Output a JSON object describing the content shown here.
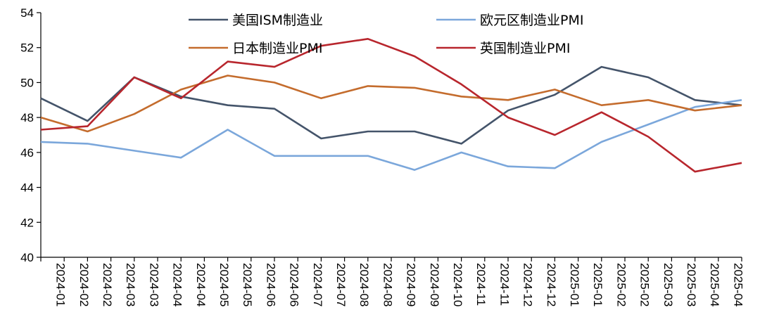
{
  "chart_data": {
    "type": "line",
    "title": "",
    "xlabel": "",
    "ylabel": "",
    "ylim": [
      40,
      54
    ],
    "yticks": [
      40,
      42,
      44,
      46,
      48,
      50,
      52,
      54
    ],
    "grid": false,
    "legend_position": "top",
    "categories": [
      "2024-01",
      "2024-02",
      "2024-02",
      "2024-03",
      "2024-03",
      "2024-04",
      "2024-04",
      "2024-05",
      "2024-05",
      "2024-06",
      "2024-06",
      "2024-07",
      "2024-07",
      "2024-08",
      "2024-08",
      "2024-09",
      "2024-09",
      "2024-10",
      "2024-11",
      "2024-11",
      "2024-12",
      "2024-12",
      "2025-01",
      "2025-01",
      "2025-02",
      "2025-02",
      "2025-03",
      "2025-03",
      "2025-04",
      "2025-04"
    ],
    "x": [
      "2024-01",
      "2024-02",
      "2024-03",
      "2024-04",
      "2024-05",
      "2024-06",
      "2024-07",
      "2024-08",
      "2024-09",
      "2024-10",
      "2024-11",
      "2024-12",
      "2025-01",
      "2025-02",
      "2025-03",
      "2025-04"
    ],
    "series": [
      {
        "name": "美国ISM制造业",
        "color": "#44546a",
        "values": [
          49.1,
          47.8,
          50.3,
          49.2,
          48.7,
          48.5,
          46.8,
          47.2,
          47.2,
          46.5,
          48.4,
          49.3,
          50.9,
          50.3,
          49.0,
          48.7
        ]
      },
      {
        "name": "欧元区制造业PMI",
        "color": "#7ba7db",
        "values": [
          46.6,
          46.5,
          46.1,
          45.7,
          47.3,
          45.8,
          45.8,
          45.8,
          45.0,
          46.0,
          45.2,
          45.1,
          46.6,
          47.6,
          48.6,
          49.0
        ]
      },
      {
        "name": "日本制造业PMI",
        "color": "#c46c2d",
        "values": [
          48.0,
          47.2,
          48.2,
          49.6,
          50.4,
          50.0,
          49.1,
          49.8,
          49.7,
          49.2,
          49.0,
          49.6,
          48.7,
          49.0,
          48.4,
          48.7
        ]
      },
      {
        "name": "英国制造业PMI",
        "color": "#b8262d",
        "values": [
          47.3,
          47.5,
          50.3,
          49.1,
          51.2,
          50.9,
          52.1,
          52.5,
          51.5,
          49.9,
          48.0,
          47.0,
          48.3,
          46.9,
          44.9,
          45.4
        ]
      }
    ]
  }
}
